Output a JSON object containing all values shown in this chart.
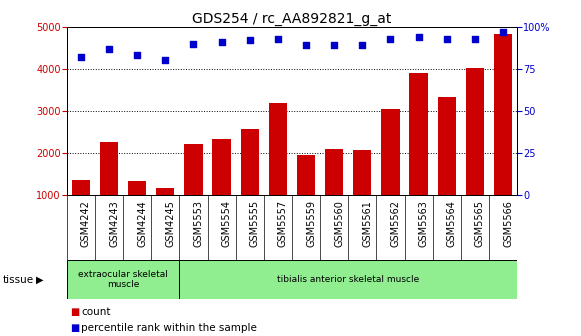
{
  "title": "GDS254 / rc_AA892821_g_at",
  "categories": [
    "GSM4242",
    "GSM4243",
    "GSM4244",
    "GSM4245",
    "GSM5553",
    "GSM5554",
    "GSM5555",
    "GSM5557",
    "GSM5559",
    "GSM5560",
    "GSM5561",
    "GSM5562",
    "GSM5563",
    "GSM5564",
    "GSM5565",
    "GSM5566"
  ],
  "counts": [
    1350,
    2270,
    1330,
    1170,
    2200,
    2330,
    2570,
    3180,
    1960,
    2100,
    2080,
    3050,
    3900,
    3330,
    4020,
    4820
  ],
  "percentiles": [
    82,
    87,
    83,
    80,
    90,
    91,
    92,
    93,
    89,
    89,
    89,
    93,
    94,
    93,
    93,
    97
  ],
  "bar_color": "#cc0000",
  "dot_color": "#0000cc",
  "ylim_left": [
    1000,
    5000
  ],
  "ylim_right": [
    0,
    100
  ],
  "yticks_left": [
    1000,
    2000,
    3000,
    4000,
    5000
  ],
  "yticks_right": [
    0,
    25,
    50,
    75,
    100
  ],
  "grid_color": "black",
  "tissue_label": "tissue",
  "group1_label": "extraocular skeletal\nmuscle",
  "group2_label": "tibialis anterior skeletal muscle",
  "group1_range": [
    0,
    4
  ],
  "group2_range": [
    4,
    16
  ],
  "tissue_color": "#90ee90",
  "xtick_bg_color": "#c8c8c8",
  "legend_count_label": "count",
  "legend_percentile_label": "percentile rank within the sample",
  "plot_bg_color": "#ffffff",
  "right_axis_color": "#0000cc",
  "left_axis_color": "#cc0000",
  "title_fontsize": 10,
  "tick_fontsize": 7,
  "legend_fontsize": 7.5
}
